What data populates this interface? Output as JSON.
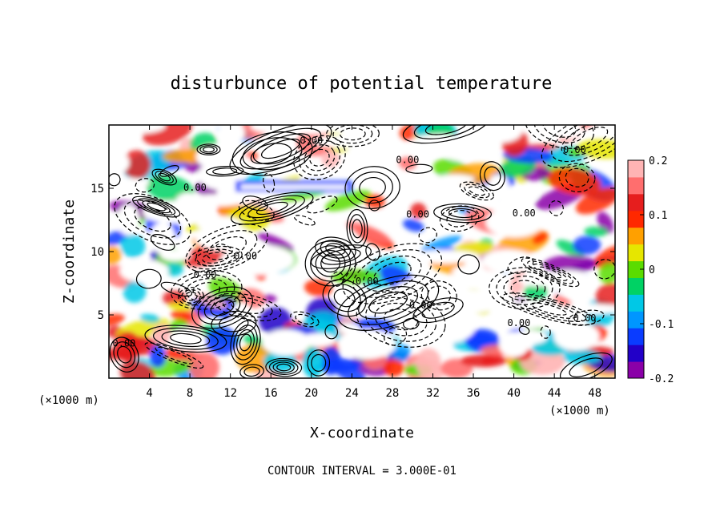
{
  "chart_data": {
    "type": "heatmap",
    "title": "disturbunce of potential temperature",
    "xlabel": "X-coordinate",
    "ylabel": "Z-coordinate",
    "x_unit_left": "(×1000 m)",
    "x_unit_right": "(×1000 m)",
    "xlim": [
      0,
      50
    ],
    "ylim": [
      0,
      20
    ],
    "xticks": [
      "4",
      "8",
      "12",
      "16",
      "20",
      "24",
      "28",
      "32",
      "36",
      "40",
      "44",
      "48"
    ],
    "yticks": [
      "5",
      "10",
      "15"
    ],
    "colorbar": {
      "range": [
        -0.2,
        0.2
      ],
      "ticks": [
        "0.2",
        "0.1",
        "0",
        "-0.1",
        "-0.2"
      ],
      "colors": [
        "#8a00a8",
        "#2200c8",
        "#0a3cff",
        "#0096ff",
        "#00c8e6",
        "#00d264",
        "#5adc00",
        "#e6e600",
        "#ffa000",
        "#ff2800",
        "#e61e1e",
        "#ff6e6e",
        "#ffb4b4"
      ]
    },
    "contour_labels": [
      "0.00",
      "0.00",
      "0.00",
      "0.00",
      "0.00",
      "0.00",
      "0.00",
      "0.00",
      "0.00",
      "0.00",
      "0.00",
      "0.00",
      "0.00"
    ],
    "contour_interval": "CONTOUR INTERVAL = 3.000E-01",
    "grid": false
  }
}
